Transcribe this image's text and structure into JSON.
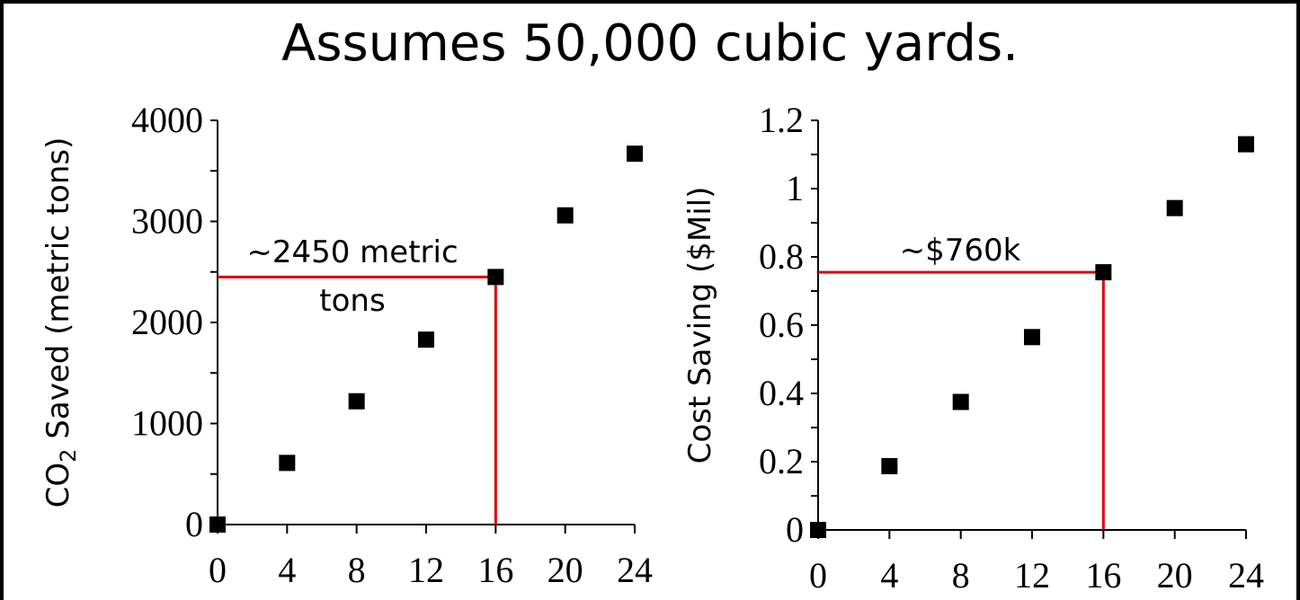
{
  "title": "Assumes 50,000 cubic yards.",
  "chart_data": [
    {
      "type": "scatter",
      "x": [
        0,
        4,
        8,
        12,
        16,
        20,
        24
      ],
      "y": [
        0,
        610,
        1220,
        1830,
        2450,
        3060,
        3670
      ],
      "xticks": [
        "0",
        "4",
        "8",
        "12",
        "16",
        "20",
        "24"
      ],
      "yticks": [
        "0",
        "1000",
        "2000",
        "3000",
        "4000"
      ],
      "xlim": [
        0,
        24
      ],
      "ylim": [
        0,
        4000
      ],
      "ylabel": "CO2 Saved (metric tons)",
      "ylabel_parts": {
        "pre": "CO",
        "sub": "2",
        "post": " Saved (metric tons)"
      },
      "annotation": {
        "lines": [
          "~2450 metric",
          "tons"
        ],
        "x": 16,
        "y": 2450,
        "color": "#e00000"
      },
      "marker_color": "#000000"
    },
    {
      "type": "scatter",
      "x": [
        0,
        4,
        8,
        12,
        16,
        20,
        24
      ],
      "y": [
        0,
        0.187,
        0.375,
        0.565,
        0.755,
        0.943,
        1.13
      ],
      "xticks": [
        "0",
        "4",
        "8",
        "12",
        "16",
        "20",
        "24"
      ],
      "yticks": [
        "0",
        "0.2",
        "0.4",
        "0.6",
        "0.8",
        "1",
        "1.2"
      ],
      "xlim": [
        0,
        24
      ],
      "ylim": [
        0,
        1.2
      ],
      "ylabel": "Cost Saving ($Mil)",
      "annotation": {
        "lines": [
          "~$760k"
        ],
        "x": 16,
        "y": 0.755,
        "color": "#e00000"
      },
      "marker_color": "#000000"
    }
  ]
}
